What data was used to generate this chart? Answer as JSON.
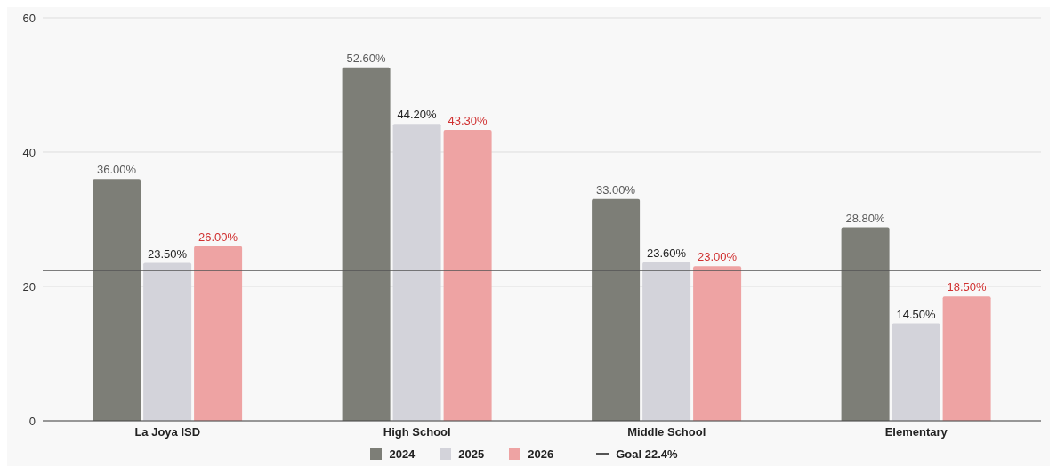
{
  "chart_data": {
    "type": "bar",
    "categories": [
      "La Joya ISD",
      "High School",
      "Middle School",
      "Elementary"
    ],
    "series": [
      {
        "name": "2024",
        "color": "#7d7e77",
        "values": [
          36.0,
          52.6,
          33.0,
          28.8
        ],
        "value_labels": [
          "36.00%",
          "52.60%",
          "33.00%",
          "28.80%"
        ]
      },
      {
        "name": "2025",
        "color": "#d3d3da",
        "values": [
          23.5,
          44.2,
          23.6,
          14.5
        ],
        "value_labels": [
          "23.50%",
          "44.20%",
          "23.60%",
          "14.50%"
        ]
      },
      {
        "name": "2026",
        "color": "#eea3a3",
        "values": [
          26.0,
          43.3,
          23.0,
          18.5
        ],
        "value_labels": [
          "26.00%",
          "43.30%",
          "23.00%",
          "18.50%"
        ]
      }
    ],
    "ylim": [
      0,
      60
    ],
    "yticks": [
      0,
      20,
      40,
      60
    ],
    "grid": "y",
    "legend": "bottom",
    "ref_lines": [
      {
        "axis": "y",
        "value": 22.4,
        "label": "Goal 22.4%",
        "color": "#555555"
      }
    ]
  }
}
